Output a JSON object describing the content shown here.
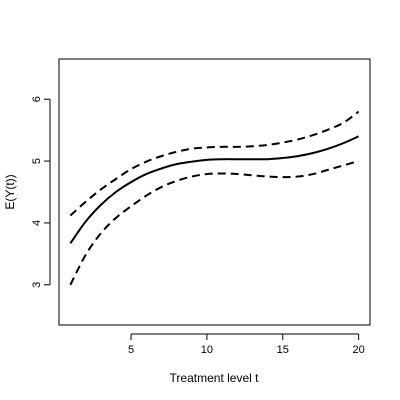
{
  "chart_data": {
    "type": "line",
    "title": "",
    "xlabel": "Treatment level t",
    "ylabel": "E(Y(t))",
    "xlim": [
      0.25,
      20.75
    ],
    "ylim": [
      2.35,
      6.65
    ],
    "grid": false,
    "legend": "none",
    "x_ticks": [
      5,
      10,
      15,
      20
    ],
    "x_tick_labels": [
      "5",
      "10",
      "15",
      "20"
    ],
    "y_ticks": [
      3,
      4,
      5,
      6
    ],
    "y_tick_labels": [
      "3",
      "4",
      "5",
      "6"
    ],
    "x": [
      1,
      2,
      3,
      4,
      5,
      6,
      7,
      8,
      9,
      10,
      11,
      12,
      13,
      14,
      15,
      16,
      17,
      18,
      19,
      20
    ],
    "series": [
      {
        "style": "solid",
        "values": [
          3.67,
          4.02,
          4.29,
          4.5,
          4.66,
          4.79,
          4.88,
          4.95,
          4.99,
          5.02,
          5.03,
          5.03,
          5.03,
          5.03,
          5.05,
          5.08,
          5.13,
          5.2,
          5.29,
          5.4
        ]
      },
      {
        "style": "dashed",
        "values": [
          4.12,
          4.34,
          4.54,
          4.71,
          4.87,
          4.99,
          5.08,
          5.15,
          5.2,
          5.22,
          5.23,
          5.23,
          5.24,
          5.26,
          5.3,
          5.35,
          5.42,
          5.51,
          5.62,
          5.8
        ]
      },
      {
        "style": "dashed",
        "values": [
          3.0,
          3.48,
          3.83,
          4.08,
          4.27,
          4.44,
          4.58,
          4.68,
          4.75,
          4.79,
          4.8,
          4.79,
          4.77,
          4.75,
          4.74,
          4.75,
          4.79,
          4.86,
          4.93,
          5.0
        ]
      }
    ],
    "colors": {
      "line": "#000000",
      "axis": "#000000",
      "background": "#ffffff"
    }
  }
}
